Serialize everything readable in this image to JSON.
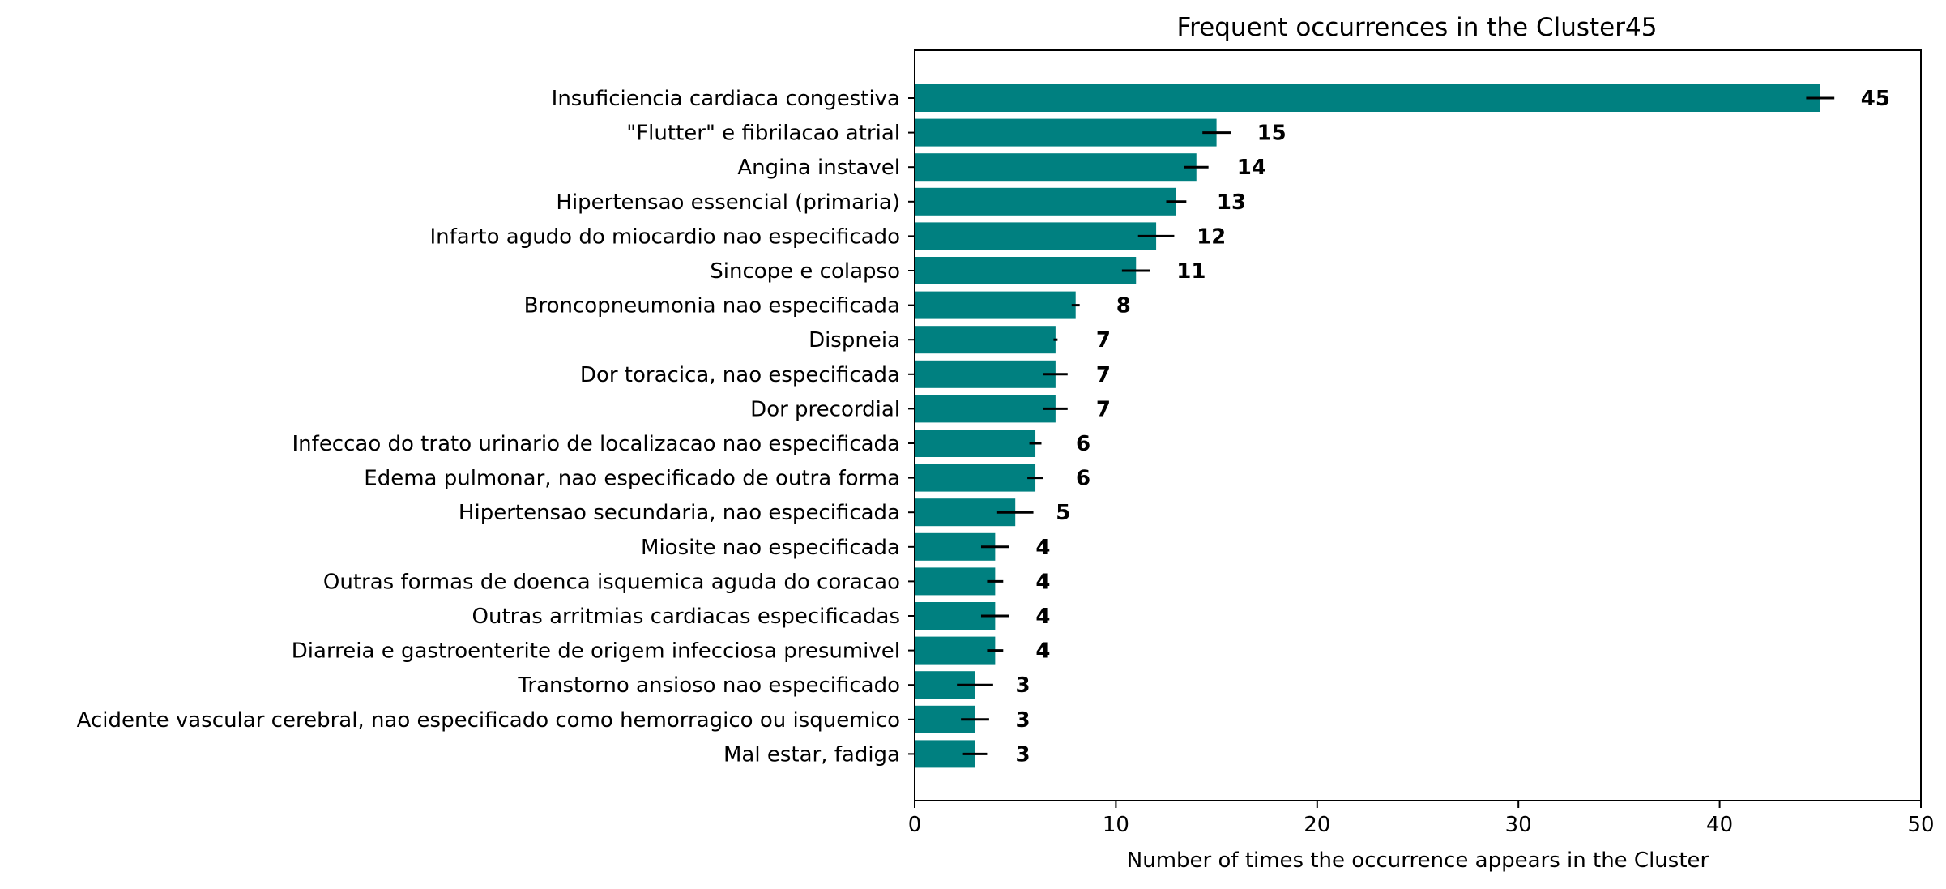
{
  "chart_data": {
    "type": "bar",
    "orientation": "horizontal",
    "title": "Frequent occurrences in the Cluster45",
    "xlabel": "Number of times the occurrence appears in the Cluster",
    "ylabel": "",
    "xlim": [
      0,
      50
    ],
    "xticks": [
      0,
      10,
      20,
      30,
      40,
      50
    ],
    "grid": false,
    "legend": "none",
    "colors": {
      "bar": "#008080",
      "error_bar": "#000000",
      "axis": "#000000",
      "text": "#000000"
    },
    "categories": [
      "Insuficiencia cardiaca congestiva",
      "\"Flutter\" e fibrilacao atrial",
      "Angina instavel",
      "Hipertensao essencial (primaria)",
      "Infarto agudo do miocardio nao especificado",
      "Sincope e colapso",
      "Broncopneumonia nao especificada",
      "Dispneia",
      "Dor toracica, nao especificada",
      "Dor precordial",
      "Infeccao do trato urinario de localizacao nao especificada",
      "Edema pulmonar, nao especificado de outra forma",
      "Hipertensao secundaria, nao especificada",
      "Miosite nao especificada",
      "Outras formas de doenca isquemica aguda do coracao",
      "Outras arritmias cardiacas especificadas",
      "Diarreia e gastroenterite de origem infecciosa presumivel",
      "Transtorno ansioso nao especificado",
      "Acidente vascular cerebral, nao especificado como hemorragico ou isquemico",
      "Mal estar, fadiga"
    ],
    "values": [
      45,
      15,
      14,
      13,
      12,
      11,
      8,
      7,
      7,
      7,
      6,
      6,
      5,
      4,
      4,
      4,
      4,
      3,
      3,
      3
    ],
    "errors": [
      0.7,
      0.7,
      0.6,
      0.5,
      0.9,
      0.7,
      0.2,
      0.1,
      0.6,
      0.6,
      0.3,
      0.4,
      0.9,
      0.7,
      0.4,
      0.7,
      0.4,
      0.9,
      0.7,
      0.6
    ],
    "data_labels": [
      "45",
      "15",
      "14",
      "13",
      "12",
      "11",
      "8",
      "7",
      "7",
      "7",
      "6",
      "6",
      "5",
      "4",
      "4",
      "4",
      "4",
      "3",
      "3",
      "3"
    ]
  }
}
